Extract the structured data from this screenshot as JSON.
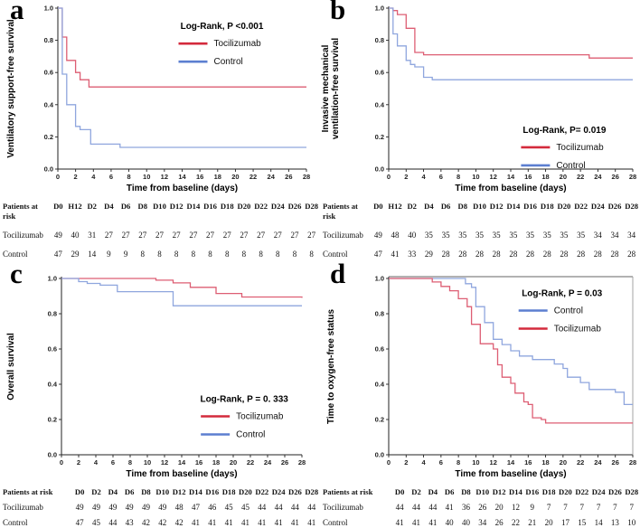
{
  "chart_data": [
    {
      "id": "a",
      "letter": "a",
      "type": "line",
      "subtype": "kaplan-meier-step",
      "ylabel_lines": [
        "Ventilatory support-free survival"
      ],
      "xlabel": "Time from baseline (days)",
      "xlim": [
        0,
        28
      ],
      "ylim": [
        0,
        1
      ],
      "xticks": [
        0,
        2,
        4,
        6,
        8,
        10,
        12,
        14,
        16,
        18,
        20,
        22,
        24,
        26,
        28
      ],
      "ytick_labels": [
        "0.0",
        "0.2",
        "0.4",
        "0.6",
        "0.8",
        "1.0"
      ],
      "grid": false,
      "frame": "axes",
      "legend": {
        "title": "Log-Rank, P <0.001",
        "position": "upper-right-inside",
        "fx": 0.66,
        "fy": 0.13,
        "entries": [
          {
            "label": "Tocilizumab",
            "color": "#d42a3c"
          },
          {
            "label": "Control",
            "color": "#5c7fd0"
          }
        ]
      },
      "series": [
        {
          "name": "Tocilizumab",
          "color": "#dd5e73",
          "points": [
            [
              0,
              1.0
            ],
            [
              0.5,
              0.82
            ],
            [
              1,
              0.675
            ],
            [
              2,
              0.6
            ],
            [
              2.5,
              0.555
            ],
            [
              3.5,
              0.51
            ],
            [
              28,
              0.51
            ]
          ]
        },
        {
          "name": "Control",
          "color": "#8fa6de",
          "points": [
            [
              0,
              1.0
            ],
            [
              0.5,
              0.59
            ],
            [
              1,
              0.4
            ],
            [
              2,
              0.265
            ],
            [
              2.5,
              0.245
            ],
            [
              3.7,
              0.155
            ],
            [
              7,
              0.135
            ],
            [
              28,
              0.135
            ]
          ]
        }
      ],
      "risk_table": {
        "header_lines": [
          "Patients at",
          "risk"
        ],
        "columns": [
          "D0",
          "H12",
          "D2",
          "D4",
          "D6",
          "D8",
          "D10",
          "D12",
          "D14",
          "D16",
          "D18",
          "D20",
          "D22",
          "D24",
          "D26",
          "D28"
        ],
        "rows": [
          {
            "name": "Tocilizumab",
            "values": [
              49,
              40,
              31,
              27,
              27,
              27,
              27,
              27,
              27,
              27,
              27,
              27,
              27,
              27,
              27,
              27
            ]
          },
          {
            "name": "Control",
            "values": [
              47,
              29,
              14,
              9,
              9,
              8,
              8,
              8,
              8,
              8,
              8,
              8,
              8,
              8,
              8,
              8
            ]
          }
        ]
      }
    },
    {
      "id": "b",
      "letter": "b",
      "type": "line",
      "subtype": "kaplan-meier-step",
      "ylabel_lines": [
        "Invasive mechanical",
        "ventilation-free survival"
      ],
      "xlabel": "Time from baseline (days)",
      "xlim": [
        0,
        28
      ],
      "ylim": [
        0,
        1
      ],
      "xticks": [
        0,
        2,
        4,
        6,
        8,
        10,
        12,
        14,
        16,
        18,
        20,
        22,
        24,
        26,
        28
      ],
      "ytick_labels": [
        "0.0",
        "0.2",
        "0.4",
        "0.6",
        "0.8",
        "1.0"
      ],
      "grid": false,
      "frame": "axes",
      "legend": {
        "title": "Log-Rank, P= 0.019",
        "position": "lower-right-inside",
        "fx": 0.72,
        "fy": 0.775,
        "entries": [
          {
            "label": "Tocilizumab",
            "color": "#d42a3c"
          },
          {
            "label": "Control",
            "color": "#5c7fd0"
          }
        ]
      },
      "series": [
        {
          "name": "Tocilizumab",
          "color": "#dd5e73",
          "points": [
            [
              0,
              1.0
            ],
            [
              0.5,
              0.985
            ],
            [
              1,
              0.96
            ],
            [
              2,
              0.875
            ],
            [
              3,
              0.725
            ],
            [
              4,
              0.71
            ],
            [
              23,
              0.69
            ],
            [
              28,
              0.69
            ]
          ]
        },
        {
          "name": "Control",
          "color": "#8fa6de",
          "points": [
            [
              0,
              1.0
            ],
            [
              0.5,
              0.84
            ],
            [
              1,
              0.765
            ],
            [
              2,
              0.675
            ],
            [
              2.5,
              0.65
            ],
            [
              3,
              0.635
            ],
            [
              4,
              0.57
            ],
            [
              5,
              0.555
            ],
            [
              28,
              0.555
            ]
          ]
        }
      ],
      "risk_table": {
        "header_lines": [
          "Patients at",
          "risk"
        ],
        "columns": [
          "D0",
          "H12",
          "D2",
          "D4",
          "D6",
          "D8",
          "D10",
          "D12",
          "D14",
          "D16",
          "D18",
          "D20",
          "D22",
          "D24",
          "D26",
          "D28"
        ],
        "rows": [
          {
            "name": "Tocilizumab",
            "values": [
              49,
              48,
              40,
              35,
              35,
              35,
              35,
              35,
              35,
              35,
              35,
              35,
              35,
              34,
              34,
              34
            ]
          },
          {
            "name": "Control",
            "values": [
              47,
              41,
              33,
              29,
              28,
              28,
              28,
              28,
              28,
              28,
              28,
              28,
              28,
              28,
              28,
              28
            ]
          }
        ]
      }
    },
    {
      "id": "c",
      "letter": "c",
      "type": "line",
      "subtype": "kaplan-meier-step",
      "ylabel_lines": [
        "Overall survival"
      ],
      "xlabel": "Time from baseline (days)",
      "xlim": [
        0,
        28
      ],
      "ylim": [
        0,
        1
      ],
      "xticks": [
        0,
        2,
        4,
        6,
        8,
        10,
        12,
        14,
        16,
        18,
        20,
        22,
        24,
        26,
        28
      ],
      "ytick_labels": [
        "0.0",
        "0.2",
        "0.4",
        "0.6",
        "0.8",
        "1.0"
      ],
      "grid": false,
      "frame": "axes",
      "legend": {
        "title": "Log-Rank, P = 0. 333",
        "position": "lower-right-inside",
        "fx": 0.76,
        "fy": 0.7,
        "entries": [
          {
            "label": "Tocilizumab",
            "color": "#d42a3c"
          },
          {
            "label": "Control",
            "color": "#5c7fd0"
          }
        ]
      },
      "series": [
        {
          "name": "Tocilizumab",
          "color": "#dd5e73",
          "points": [
            [
              0,
              1.0
            ],
            [
              11,
              0.99
            ],
            [
              13,
              0.975
            ],
            [
              15,
              0.95
            ],
            [
              18,
              0.915
            ],
            [
              21,
              0.895
            ],
            [
              28,
              0.89
            ]
          ]
        },
        {
          "name": "Control",
          "color": "#8fa6de",
          "points": [
            [
              0,
              1.0
            ],
            [
              2,
              0.982
            ],
            [
              3,
              0.972
            ],
            [
              4.5,
              0.962
            ],
            [
              6.5,
              0.925
            ],
            [
              13,
              0.845
            ],
            [
              28,
              0.845
            ]
          ]
        }
      ],
      "risk_table": {
        "header_lines": [
          "Patients at risk"
        ],
        "columns": [
          "D0",
          "D2",
          "D4",
          "D6",
          "D8",
          "D10",
          "D12",
          "D14",
          "D16",
          "D18",
          "D20",
          "D22",
          "D24",
          "D26",
          "D28"
        ],
        "rows": [
          {
            "name": "Tocilizumab",
            "values": [
              49,
              49,
              49,
              49,
              49,
              49,
              48,
              47,
              46,
              45,
              45,
              44,
              44,
              44,
              44
            ]
          },
          {
            "name": "Control",
            "values": [
              47,
              45,
              44,
              43,
              42,
              42,
              42,
              41,
              41,
              41,
              41,
              41,
              41,
              41,
              41
            ]
          }
        ]
      }
    },
    {
      "id": "d",
      "letter": "d",
      "type": "line",
      "subtype": "kaplan-meier-step",
      "ylabel_lines": [
        "Time to oxygen-free status"
      ],
      "xlabel": "Time from baseline (days)",
      "xlim": [
        0,
        28
      ],
      "ylim": [
        0,
        1
      ],
      "xticks": [
        0,
        2,
        4,
        6,
        8,
        10,
        12,
        14,
        16,
        18,
        20,
        22,
        24,
        26,
        28
      ],
      "ytick_labels": [
        "0.0",
        "0.2",
        "0.4",
        "0.6",
        "0.8",
        "1.0"
      ],
      "grid": false,
      "frame": "box",
      "legend": {
        "title": "Log-Rank, P = 0.03",
        "position": "upper-right-inside",
        "fx": 0.71,
        "fy": 0.1,
        "entries": [
          {
            "label": "Control",
            "color": "#5c7fd0"
          },
          {
            "label": "Tocilizumab",
            "color": "#d42a3c"
          }
        ]
      },
      "series": [
        {
          "name": "Control",
          "color": "#8fa6de",
          "points": [
            [
              0,
              1.0
            ],
            [
              8.8,
              0.97
            ],
            [
              9.5,
              0.95
            ],
            [
              10,
              0.84
            ],
            [
              11,
              0.75
            ],
            [
              12,
              0.655
            ],
            [
              13,
              0.625
            ],
            [
              14,
              0.59
            ],
            [
              15,
              0.56
            ],
            [
              16.5,
              0.54
            ],
            [
              19,
              0.515
            ],
            [
              20,
              0.49
            ],
            [
              20.5,
              0.44
            ],
            [
              22,
              0.41
            ],
            [
              23,
              0.37
            ],
            [
              26,
              0.355
            ],
            [
              27,
              0.285
            ],
            [
              28,
              0.285
            ]
          ]
        },
        {
          "name": "Tocilizumab",
          "color": "#dd5e73",
          "points": [
            [
              0,
              1.0
            ],
            [
              5,
              0.98
            ],
            [
              6,
              0.955
            ],
            [
              7,
              0.93
            ],
            [
              8,
              0.885
            ],
            [
              9,
              0.84
            ],
            [
              9.5,
              0.74
            ],
            [
              10.5,
              0.63
            ],
            [
              12,
              0.6
            ],
            [
              12.5,
              0.51
            ],
            [
              13,
              0.44
            ],
            [
              14,
              0.405
            ],
            [
              14.5,
              0.35
            ],
            [
              15.5,
              0.3
            ],
            [
              16,
              0.285
            ],
            [
              16.5,
              0.21
            ],
            [
              17.5,
              0.2
            ],
            [
              18,
              0.18
            ],
            [
              28,
              0.18
            ]
          ]
        }
      ],
      "risk_table": {
        "header_lines": [
          "Patients at risk"
        ],
        "columns": [
          "D0",
          "D2",
          "D4",
          "D6",
          "D8",
          "D10",
          "D12",
          "D14",
          "D16",
          "D18",
          "D20",
          "D22",
          "D24",
          "D26",
          "D28"
        ],
        "rows": [
          {
            "name": "Tocilizumab",
            "values": [
              44,
              44,
              44,
              41,
              36,
              26,
              20,
              12,
              9,
              7,
              7,
              7,
              7,
              7,
              7
            ]
          },
          {
            "name": "Control",
            "values": [
              41,
              41,
              41,
              40,
              40,
              34,
              26,
              22,
              21,
              20,
              17,
              15,
              14,
              13,
              10
            ]
          }
        ]
      }
    }
  ]
}
